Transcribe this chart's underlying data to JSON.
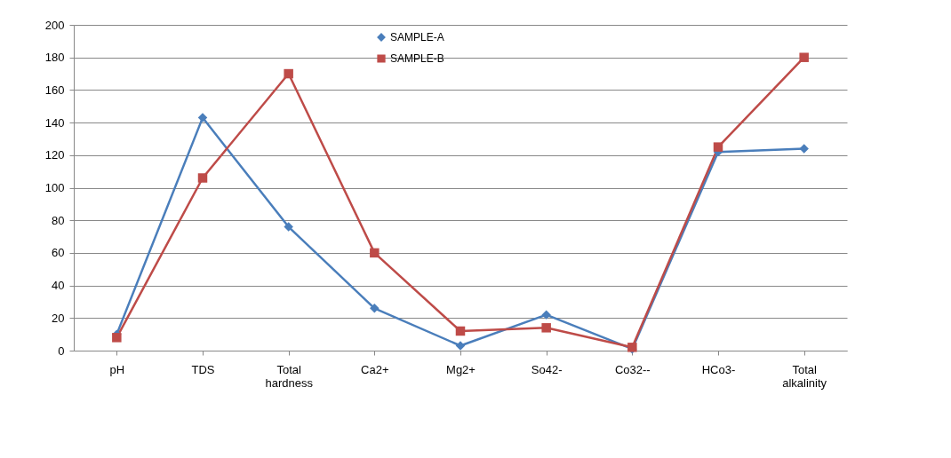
{
  "chart_data": {
    "type": "line",
    "categories": [
      "pH",
      "TDS",
      "Total hardness",
      "Ca2+",
      "Mg2+",
      "So42-",
      "Co32--",
      "HCo3-",
      "Total alkalinity"
    ],
    "series": [
      {
        "name": "SAMPLE-A",
        "color": "#4a7ebb",
        "marker": "diamond",
        "values": [
          10,
          143,
          76,
          26,
          3,
          22,
          1,
          122,
          124
        ]
      },
      {
        "name": "SAMPLE-B",
        "color": "#be4b48",
        "marker": "square",
        "values": [
          8,
          106,
          170,
          60,
          12,
          14,
          2,
          125,
          180
        ]
      }
    ],
    "ylim": [
      0,
      200
    ],
    "yticks": [
      0,
      20,
      40,
      60,
      80,
      100,
      120,
      140,
      160,
      180,
      200
    ],
    "grid": "y",
    "legend": "top"
  }
}
